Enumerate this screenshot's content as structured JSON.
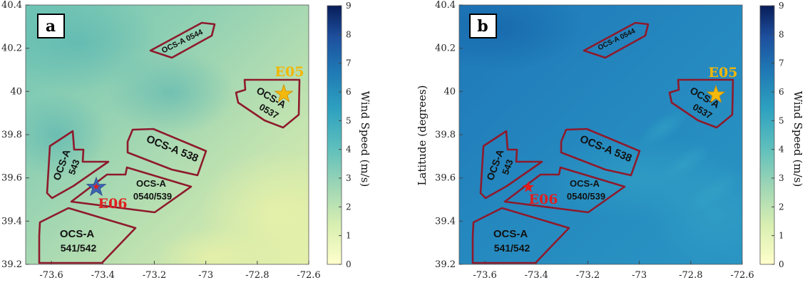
{
  "colors": {
    "lease_outline": "#8e1a2c",
    "e05_label": "#f2b705",
    "e06_label": "#e01f1f",
    "star_gold": "#f5b80c",
    "star_blue": "#3d63b0",
    "star_red": "#e31b1b"
  },
  "colorbar": {
    "label": "Wind Speed (m/s)",
    "ticks": [
      "0",
      "1",
      "2",
      "3",
      "4",
      "5",
      "6",
      "7",
      "8",
      "9"
    ],
    "range": [
      0,
      9
    ]
  },
  "axes": {
    "x_ticks": [
      "-73.6",
      "-73.4",
      "-73.2",
      "-73",
      "-72.8",
      "-72.6"
    ],
    "y_ticks": [
      "39.2",
      "39.4",
      "39.6",
      "39.8",
      "40",
      "40.2",
      "40.4"
    ],
    "ylabel": "Latitude (degrees)",
    "xlim": [
      -73.7,
      -72.6
    ],
    "ylim": [
      39.2,
      40.4
    ]
  },
  "panels": [
    {
      "letter": "a",
      "leases": {
        "ocs_0544": "OCS-A 0544",
        "ocs_0537_line1": "OCS-A",
        "ocs_0537_line2": "0537",
        "ocs_538": "OCS-A 538",
        "ocs_543_line1": "OCS-A",
        "ocs_543_line2": "543",
        "ocs_0540_line1": "OCS-A",
        "ocs_0540_line2": "0540/539",
        "ocs_541_line1": "OCS-A",
        "ocs_541_line2": "541/542"
      },
      "sites": {
        "e05": "E05",
        "e06": "E06"
      }
    },
    {
      "letter": "b",
      "leases": {
        "ocs_0544": "OCS-A 0544",
        "ocs_0537_line1": "OCS-A",
        "ocs_0537_line2": "0537",
        "ocs_538": "OCS-A 538",
        "ocs_543_line1": "OCS-A",
        "ocs_543_line2": "543",
        "ocs_0540_line1": "OCS-A",
        "ocs_0540_line2": "0540/539",
        "ocs_541_line1": "OCS-A",
        "ocs_541_line2": "541/542"
      },
      "sites": {
        "e05": "E05",
        "e06": "E06"
      }
    }
  ]
}
